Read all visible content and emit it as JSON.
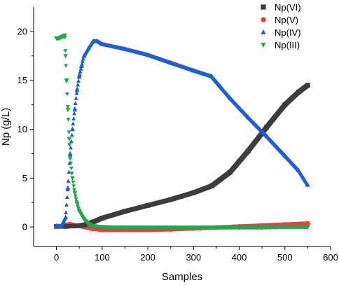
{
  "chart_data": {
    "type": "scatter",
    "title": "",
    "xlabel": "Samples",
    "ylabel": "Np (g/L)",
    "xlim": [
      -50,
      600
    ],
    "ylim": [
      -2,
      22.5
    ],
    "xticks": [
      0,
      100,
      200,
      300,
      400,
      500,
      600
    ],
    "yticks": [
      0,
      5,
      10,
      15,
      20
    ],
    "legend_position": "top-right",
    "series": [
      {
        "name": "Np(VI)",
        "color": "#3d3d3d",
        "marker": "square",
        "x": [
          0,
          20,
          40,
          60,
          80,
          100,
          150,
          200,
          250,
          300,
          340,
          380,
          420,
          460,
          500,
          530,
          550
        ],
        "y": [
          0.05,
          0.05,
          0.1,
          0.2,
          0.5,
          0.9,
          1.6,
          2.2,
          2.8,
          3.5,
          4.2,
          5.6,
          7.8,
          10.2,
          12.5,
          13.8,
          14.5
        ]
      },
      {
        "name": "Np(V)",
        "color": "#f03c3c",
        "marker": "circle",
        "x": [
          0,
          10,
          20,
          30,
          40,
          60,
          80,
          100,
          150,
          200,
          250,
          300,
          350,
          400,
          450,
          500,
          550
        ],
        "y": [
          0.1,
          0.05,
          0.2,
          0.3,
          0.15,
          0.0,
          -0.2,
          -0.3,
          -0.3,
          -0.3,
          -0.25,
          -0.15,
          -0.05,
          0.05,
          0.15,
          0.25,
          0.35
        ]
      },
      {
        "name": "Np(IV)",
        "color": "#1f5fd6",
        "marker": "triangle-up",
        "x": [
          0,
          10,
          20,
          25,
          30,
          35,
          40,
          45,
          50,
          55,
          60,
          70,
          80,
          90,
          100,
          150,
          200,
          250,
          300,
          340,
          380,
          420,
          460,
          500,
          530,
          550
        ],
        "y": [
          0.1,
          0.1,
          1.0,
          4.0,
          7.5,
          10.0,
          12.0,
          14.0,
          15.5,
          16.5,
          17.5,
          18.3,
          19.0,
          19.0,
          18.7,
          18.2,
          17.6,
          16.8,
          16.0,
          15.4,
          13.2,
          11.2,
          9.3,
          7.3,
          5.8,
          4.3
        ]
      },
      {
        "name": "Np(III)",
        "color": "#22a84c",
        "marker": "triangle-down",
        "x": [
          0,
          5,
          10,
          15,
          18,
          20,
          22,
          25,
          28,
          30,
          35,
          40,
          45,
          50,
          60,
          70,
          80,
          100,
          150,
          200,
          250,
          300,
          350,
          400,
          450,
          500,
          550
        ],
        "y": [
          19.3,
          19.3,
          19.4,
          19.5,
          19.6,
          17.5,
          15.0,
          12.0,
          9.0,
          7.0,
          5.0,
          3.5,
          2.4,
          1.6,
          0.8,
          0.3,
          0.1,
          0.0,
          -0.05,
          -0.05,
          -0.05,
          -0.05,
          -0.05,
          -0.05,
          -0.05,
          0.0,
          0.0
        ]
      }
    ]
  }
}
